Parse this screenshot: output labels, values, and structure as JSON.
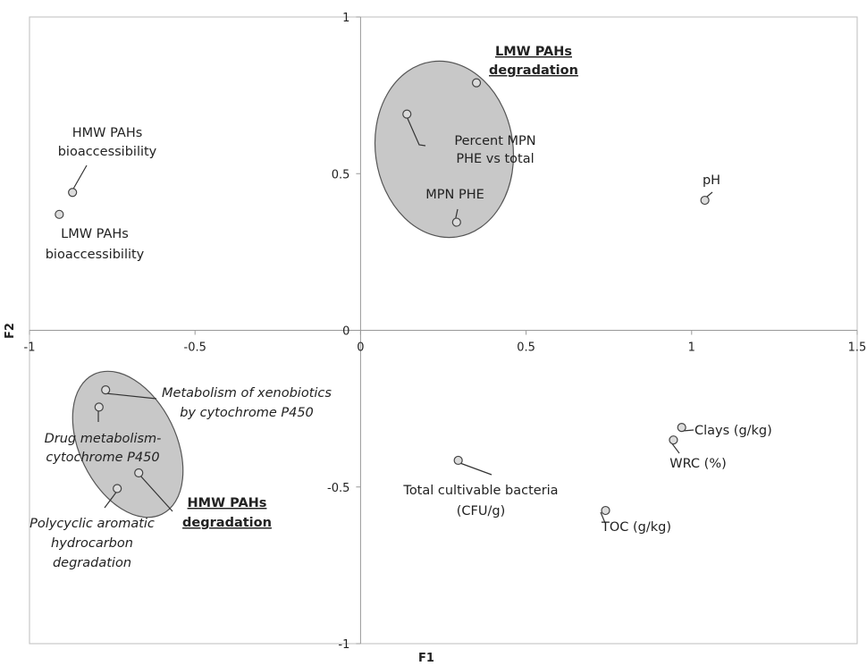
{
  "chart_data": {
    "type": "scatter",
    "xlabel": "F1",
    "ylabel": "F2",
    "xlim": [
      -1,
      1.5
    ],
    "ylim": [
      -1,
      1
    ],
    "x_ticks": [
      -1,
      -0.5,
      0,
      0.5,
      1,
      1.5
    ],
    "x_tick_labels": [
      "-1",
      "-0.5",
      "0",
      "0.5",
      "1",
      "1.5"
    ],
    "y_ticks": [
      -1,
      -0.5,
      0,
      0.5,
      1
    ],
    "y_tick_labels": [
      "-1",
      "-0.5",
      "0",
      "0.5",
      "1"
    ],
    "points": [
      {
        "id": "hmw-bio",
        "x": -0.87,
        "y": 0.44,
        "label": [
          "HMW PAHs",
          "bioaccessibility"
        ],
        "style": "normal"
      },
      {
        "id": "lmw-bio",
        "x": -0.91,
        "y": 0.37,
        "label": [
          "LMW PAHs",
          "bioaccessibility"
        ],
        "style": "normal"
      },
      {
        "id": "lmw-deg",
        "x": 0.35,
        "y": 0.79,
        "label": [
          "LMW PAHs",
          "degradation"
        ],
        "style": "bold-underline"
      },
      {
        "id": "pct-mpn",
        "x": 0.14,
        "y": 0.69,
        "label": [
          "Percent MPN",
          "PHE vs total"
        ],
        "style": "normal"
      },
      {
        "id": "mpn-phe",
        "x": 0.29,
        "y": 0.345,
        "label": [
          "MPN PHE"
        ],
        "style": "normal"
      },
      {
        "id": "ph",
        "x": 1.04,
        "y": 0.415,
        "label": [
          "pH"
        ],
        "style": "normal"
      },
      {
        "id": "xeno",
        "x": -0.77,
        "y": -0.19,
        "label": [
          "Metabolism of xenobiotics",
          "by cytochrome P450"
        ],
        "style": "italic"
      },
      {
        "id": "drug",
        "x": -0.79,
        "y": -0.245,
        "label": [
          "Drug metabolism-",
          "cytochrome P450"
        ],
        "style": "italic"
      },
      {
        "id": "hmw-deg",
        "x": -0.67,
        "y": -0.455,
        "label": [
          "HMW PAHs",
          "degradation"
        ],
        "style": "bold-underline"
      },
      {
        "id": "pah-deg",
        "x": -0.735,
        "y": -0.505,
        "label": [
          "Polycyclic aromatic",
          "hydrocarbon",
          "degradation"
        ],
        "style": "italic"
      },
      {
        "id": "clays",
        "x": 0.97,
        "y": -0.31,
        "label": [
          "Clays (g/kg)"
        ],
        "style": "normal"
      },
      {
        "id": "wrc",
        "x": 0.945,
        "y": -0.35,
        "label": [
          "WRC (%)"
        ],
        "style": "normal"
      },
      {
        "id": "tcb",
        "x": 0.295,
        "y": -0.415,
        "label": [
          "Total cultivable bacteria",
          "(CFU/g)"
        ],
        "style": "normal"
      },
      {
        "id": "toc",
        "x": 0.74,
        "y": -0.575,
        "label": [
          "TOC (g/kg)"
        ],
        "style": "normal"
      }
    ],
    "groups": [
      {
        "id": "upper-group",
        "members": [
          "lmw-deg",
          "pct-mpn",
          "mpn-phe"
        ]
      },
      {
        "id": "lower-group",
        "members": [
          "xeno",
          "drug",
          "hmw-deg",
          "pah-deg"
        ]
      }
    ],
    "grid": false,
    "legend": "none"
  }
}
